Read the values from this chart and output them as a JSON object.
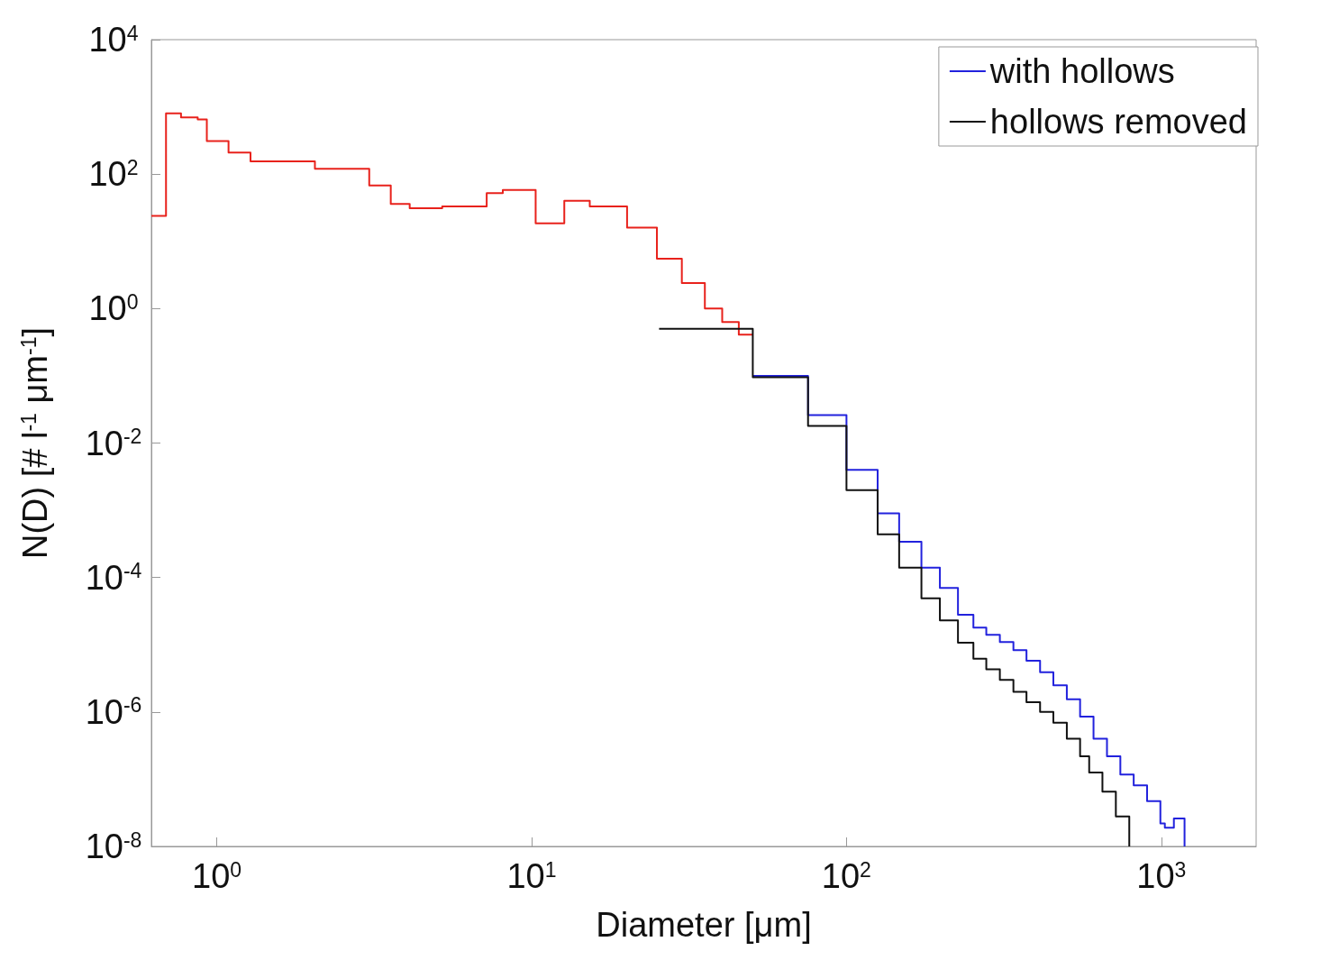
{
  "chart_data": {
    "type": "step",
    "xlabel": "Diameter [μm]",
    "ylabel": "N(D) [# l$^{-1}$ μm$^{-1}$]",
    "log": "xy",
    "grid": false,
    "legend": "top right",
    "marker": "none",
    "line_style": "solid",
    "xlim": [
      0.62,
      2000
    ],
    "ylim": [
      1e-08,
      10000
    ],
    "xticks": [
      {
        "value": 1,
        "label": "10$^{0}$"
      },
      {
        "value": 10,
        "label": "10$^{1}$"
      },
      {
        "value": 100,
        "label": "10$^{2}$"
      },
      {
        "value": 1000,
        "label": "10$^{3}$"
      }
    ],
    "yticks": [
      {
        "value": 1e-08,
        "label": "10$^{-8}$"
      },
      {
        "value": 1e-06,
        "label": "10$^{-6}$"
      },
      {
        "value": 0.0001,
        "label": "10$^{-4}$"
      },
      {
        "value": 0.01,
        "label": "10$^{-2}$"
      },
      {
        "value": 1,
        "label": "10$^{0}$"
      },
      {
        "value": 100,
        "label": "10$^{2}$"
      },
      {
        "value": 10000,
        "label": "10$^{4}$"
      }
    ],
    "series": [
      {
        "color": "#e8221c",
        "x": [
          0.62,
          0.69,
          0.77,
          0.87,
          0.93,
          1.09,
          1.28,
          2.05,
          3.05,
          3.57,
          4.1,
          5.2,
          7.2,
          8.1,
          10.3,
          12.7,
          15.3,
          20.1,
          25,
          30,
          35.5,
          40.3,
          45.5,
          50.4
        ],
        "values": [
          24,
          800,
          700,
          650,
          310,
          210,
          155,
          120,
          68,
          36,
          31,
          33,
          52,
          58,
          18.5,
          40,
          33,
          16,
          5.5,
          2.4,
          1.0,
          0.63,
          0.41,
          0.41
        ]
      },
      {
        "name": "with hollows",
        "color": "#2222dd",
        "x": [
          50.4,
          75.5,
          100,
          125.6,
          147,
          173,
          198,
          226,
          253,
          278,
          307,
          339,
          373,
          412,
          454,
          501,
          552,
          609,
          672,
          741,
          817,
          901,
          993,
          1026,
          1096,
          1185
        ],
        "values": [
          0.1,
          0.026,
          0.004,
          0.0009,
          0.00034,
          0.00014,
          7e-05,
          2.8e-05,
          1.8e-05,
          1.4e-05,
          1.1e-05,
          8.3e-06,
          5.8e-06,
          3.9e-06,
          2.5e-06,
          1.55e-06,
          8.5e-07,
          4e-07,
          2.2e-07,
          1.17e-07,
          8.1e-08,
          4.7e-08,
          2.2e-08,
          1.9e-08,
          2.6e-08,
          1e-08
        ]
      },
      {
        "name": "hollows removed",
        "color": "#111111",
        "x": [
          25.4,
          50.4,
          75.5,
          100,
          125.6,
          147,
          173,
          198,
          226,
          253,
          278,
          307,
          339,
          373,
          412,
          454,
          501,
          552,
          590,
          650,
          717,
          791
        ],
        "values": [
          0.5,
          0.095,
          0.018,
          0.002,
          0.00044,
          0.00014,
          4.9e-05,
          2.3e-05,
          1.07e-05,
          6.2e-06,
          4.3e-06,
          3e-06,
          2e-06,
          1.4e-06,
          1e-06,
          6.9e-07,
          4e-07,
          2.2e-07,
          1.26e-07,
          6.5e-08,
          2.8e-08,
          1e-08
        ]
      }
    ]
  }
}
